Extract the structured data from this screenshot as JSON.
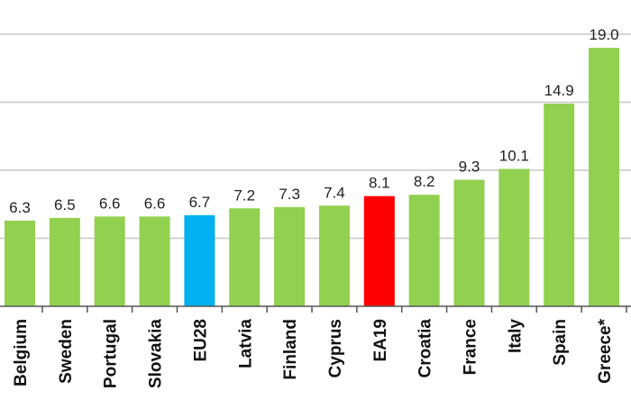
{
  "chart_data": {
    "type": "bar",
    "categories": [
      "Belgium",
      "Sweden",
      "Portugal",
      "Slovakia",
      "EU28",
      "Latvia",
      "Finland",
      "Cyprus",
      "EA19",
      "Croatia",
      "France",
      "Italy",
      "Spain",
      "Greece*"
    ],
    "values": [
      6.3,
      6.5,
      6.6,
      6.6,
      6.7,
      7.2,
      7.3,
      7.4,
      8.1,
      8.2,
      9.3,
      10.1,
      14.9,
      19.0
    ],
    "value_labels": [
      "6.3",
      "6.5",
      "6.6",
      "6.6",
      "6.7",
      "7.2",
      "7.3",
      "7.4",
      "8.1",
      "8.2",
      "9.3",
      "10.1",
      "14.9",
      "19.0"
    ],
    "bar_colors": [
      "#92d050",
      "#92d050",
      "#92d050",
      "#92d050",
      "#00b0f0",
      "#92d050",
      "#92d050",
      "#92d050",
      "#ff0000",
      "#92d050",
      "#92d050",
      "#92d050",
      "#92d050",
      "#92d050"
    ],
    "ylim": [
      0,
      20
    ],
    "grid": true,
    "title": "",
    "xlabel": "",
    "ylabel": ""
  },
  "colors": {
    "default_bar": "#92d050",
    "highlight_eu": "#00b0f0",
    "highlight_ea": "#ff0000",
    "gridline": "#c8c8c8",
    "axis": "#555555"
  }
}
